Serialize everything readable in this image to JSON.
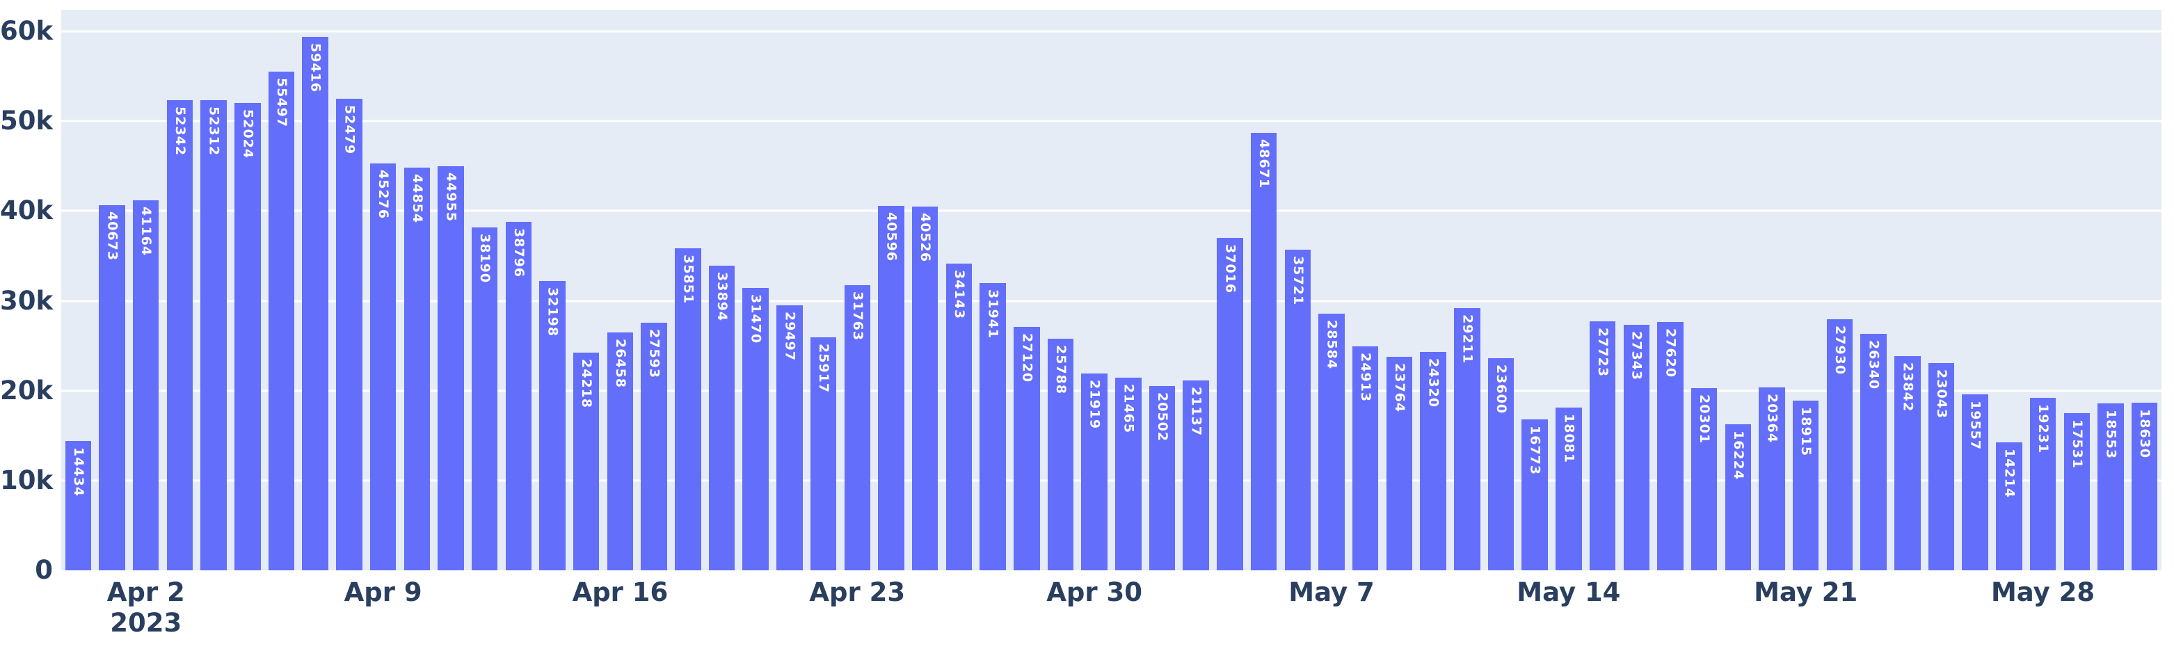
{
  "chart_data": {
    "type": "bar",
    "title": "",
    "xlabel": "",
    "ylabel": "",
    "values": [
      14434,
      40673,
      41164,
      52342,
      52312,
      52024,
      55497,
      59416,
      52479,
      45276,
      44854,
      44955,
      38190,
      38796,
      32198,
      24218,
      26458,
      27593,
      35851,
      33894,
      31470,
      29497,
      25917,
      31763,
      40596,
      40526,
      34143,
      31941,
      27120,
      25788,
      21919,
      21465,
      20502,
      21137,
      37016,
      48671,
      35721,
      28584,
      24913,
      23764,
      24320,
      29211,
      23600,
      16773,
      18081,
      27723,
      27343,
      27620,
      20301,
      16224,
      20364,
      18915,
      27930,
      26340,
      23842,
      23043,
      19557,
      14214,
      19231,
      17531,
      18553,
      18630
    ],
    "bar_value_labels_shown": true,
    "x_ticks": [
      {
        "bar_index": 2,
        "label": "Apr 2",
        "sublabel": "2023"
      },
      {
        "bar_index": 9,
        "label": "Apr 9",
        "sublabel": ""
      },
      {
        "bar_index": 16,
        "label": "Apr 16",
        "sublabel": ""
      },
      {
        "bar_index": 23,
        "label": "Apr 23",
        "sublabel": ""
      },
      {
        "bar_index": 30,
        "label": "Apr 30",
        "sublabel": ""
      },
      {
        "bar_index": 37,
        "label": "May 7",
        "sublabel": ""
      },
      {
        "bar_index": 44,
        "label": "May 14",
        "sublabel": ""
      },
      {
        "bar_index": 51,
        "label": "May 21",
        "sublabel": ""
      },
      {
        "bar_index": 58,
        "label": "May 28",
        "sublabel": ""
      }
    ],
    "y_ticks": [
      {
        "value": 0,
        "label": "0"
      },
      {
        "value": 10000,
        "label": "10k"
      },
      {
        "value": 20000,
        "label": "20k"
      },
      {
        "value": 30000,
        "label": "30k"
      },
      {
        "value": 40000,
        "label": "40k"
      },
      {
        "value": 50000,
        "label": "50k"
      },
      {
        "value": 60000,
        "label": "60k"
      },
      {
        "value": 61000,
        "label": ""
      }
    ],
    "ylim": [
      0,
      62400
    ],
    "grid": true,
    "legend": false,
    "colors": {
      "bar": "#636EFA",
      "plot_background": "#E5ECF6",
      "gridline": "#FFFFFF",
      "axis_text": "#2a3f5f",
      "bar_label_text": "#FFFFFF",
      "figure_background": "#FFFFFF"
    }
  }
}
